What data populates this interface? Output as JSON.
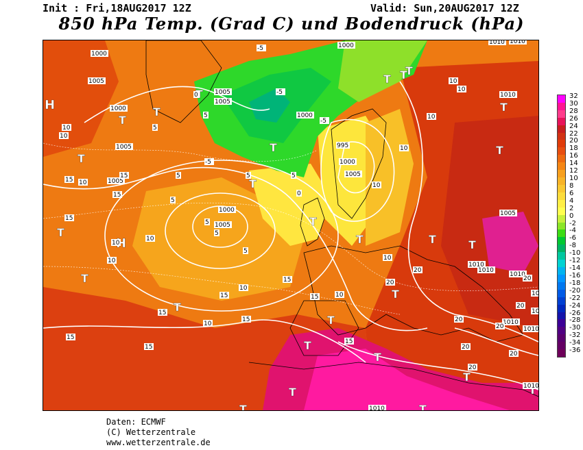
{
  "header": {
    "init": "Init : Fri,18AUG2017 12Z",
    "valid": "Valid: Sun,20AUG2017 12Z",
    "title": "850 hPa Temp. (Grad C) und Bodendruck (hPa)"
  },
  "legend": {
    "values": [
      "32",
      "30",
      "28",
      "26",
      "24",
      "22",
      "20",
      "18",
      "16",
      "14",
      "12",
      "10",
      "8",
      "6",
      "4",
      "2",
      "0",
      "-2",
      "-4",
      "-6",
      "-8",
      "-10",
      "-12",
      "-14",
      "-16",
      "-18",
      "-20",
      "-22",
      "-24",
      "-26",
      "-28",
      "-30",
      "-32",
      "-34",
      "-36"
    ],
    "colors": [
      "#ff00ff",
      "#ff1493",
      "#ff3c8c",
      "#e8135a",
      "#c81e1e",
      "#d23214",
      "#e03c0a",
      "#e84e10",
      "#ee6a10",
      "#f58614",
      "#f7a01e",
      "#f8b428",
      "#fac832",
      "#fcdc3c",
      "#ffef46",
      "#ffff50",
      "#c8f03c",
      "#8ce628",
      "#3cdc14",
      "#00c832",
      "#00b464",
      "#00c8a0",
      "#00d2d2",
      "#00b4f0",
      "#0096ff",
      "#0078f0",
      "#005ae6",
      "#0040d2",
      "#0028be",
      "#1414aa",
      "#3c0096",
      "#500082",
      "#5a006e",
      "#640064",
      "#6e005a"
    ]
  },
  "map": {
    "pressure_highs": [
      "H",
      "H"
    ],
    "thermal_lows": [
      "T",
      "T",
      "T",
      "T",
      "T",
      "T",
      "T",
      "T",
      "T",
      "T",
      "T",
      "T",
      "T",
      "T",
      "T",
      "T",
      "T",
      "T",
      "T",
      "T",
      "T",
      "T",
      "T",
      "T",
      "T",
      "T",
      "T",
      "T",
      "T"
    ],
    "isobar_labels": [
      "1000",
      "1005",
      "1000",
      "1005",
      "1005",
      "1005",
      "1005",
      "1000",
      "1000",
      "995",
      "1000",
      "1005",
      "1000",
      "1005",
      "1010",
      "1010",
      "1010",
      "1010",
      "1005",
      "1010",
      "1010",
      "1010",
      "1010",
      "1010",
      "1010",
      "1010",
      "1010"
    ],
    "isotherm_labels": [
      "15",
      "15",
      "15",
      "15",
      "15",
      "15",
      "15",
      "15",
      "15",
      "15",
      "15",
      "15",
      "10",
      "10",
      "10",
      "10",
      "10",
      "10",
      "10",
      "10",
      "10",
      "10",
      "10",
      "10",
      "10",
      "10",
      "10",
      "5",
      "5",
      "5",
      "5",
      "5",
      "5",
      "5",
      "5",
      "5",
      "0",
      "0",
      "-5",
      "-5",
      "-5",
      "-5",
      "20",
      "20",
      "20",
      "20",
      "20",
      "20",
      "20",
      "20",
      "20"
    ]
  },
  "credits": {
    "line1": "Daten: ECMWF",
    "line2": "(C) Wetterzentrale",
    "line3": "www.wetterzentrale.de"
  }
}
